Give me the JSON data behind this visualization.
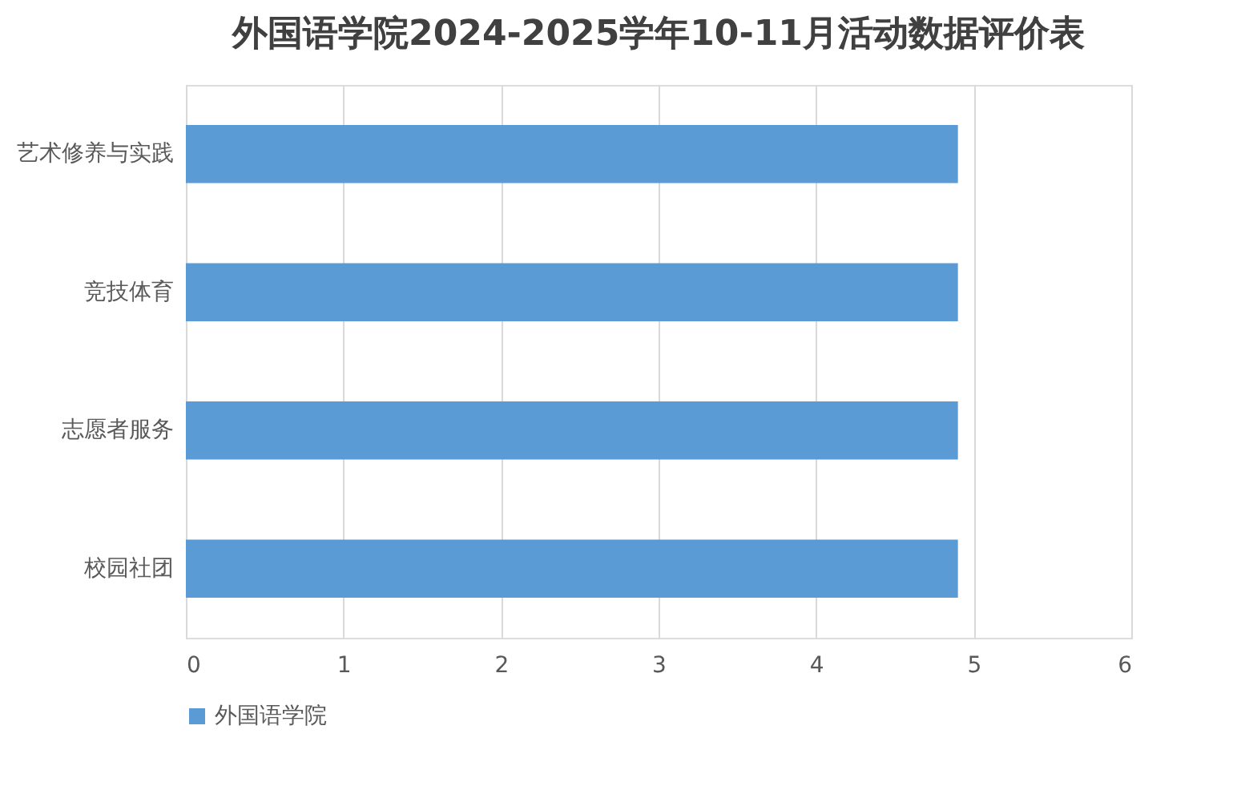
{
  "chart_data": {
    "type": "bar",
    "orientation": "horizontal",
    "title": "外国语学院2024-2025学年10-11月活动数据评价表",
    "categories": [
      "艺术修养与实践",
      "竞技体育",
      "志愿者服务",
      "校园社团"
    ],
    "series": [
      {
        "name": "外国语学院",
        "color": "#5b9bd5",
        "values": [
          4.9,
          4.9,
          4.9,
          4.9
        ]
      }
    ],
    "xlim": [
      0,
      6
    ],
    "xticks": [
      0,
      1,
      2,
      3,
      4,
      5,
      6
    ],
    "grid": "x",
    "legend": "bottom"
  }
}
